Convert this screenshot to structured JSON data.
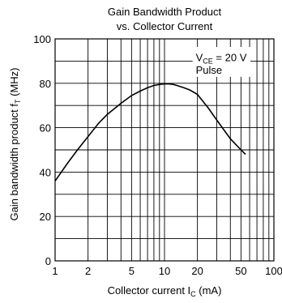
{
  "chart_data": {
    "type": "line",
    "title_line1": "Gain Bandwidth Product",
    "title_line2": "vs. Collector Current",
    "xlabel": {
      "main": "Collector current  I",
      "sub": "C",
      "unit": "  (mA)"
    },
    "ylabel": {
      "main": "Gain bandwidth product  f",
      "sub": "T",
      "unit": "  (MHz)"
    },
    "x_scale": "log",
    "xlim": [
      1,
      100
    ],
    "ylim": [
      0,
      100
    ],
    "x_ticks": [
      1,
      2,
      5,
      10,
      20,
      50,
      100
    ],
    "x_tick_labels": [
      "1",
      "2",
      "5",
      "10",
      "20",
      "50",
      "100"
    ],
    "y_ticks": [
      0,
      20,
      40,
      60,
      80,
      100
    ],
    "y_tick_labels": [
      "0",
      "20",
      "40",
      "60",
      "80",
      "100"
    ],
    "grid": true,
    "annotation": {
      "vce_main": "V",
      "vce_sub": "CE",
      "vce_value": " = 20 V",
      "pulse": "Pulse"
    },
    "series": [
      {
        "x": [
          1,
          1.3,
          1.6,
          2,
          2.5,
          3,
          4,
          5,
          6,
          7,
          8,
          9,
          10,
          11,
          12,
          13,
          15,
          17,
          20,
          25,
          30,
          40,
          50,
          55
        ],
        "y": [
          36,
          44,
          50,
          56,
          62,
          66,
          71,
          74.5,
          76.5,
          78,
          79,
          79.5,
          79.7,
          79.7,
          79.5,
          79,
          78,
          77,
          75,
          69,
          63.5,
          55,
          50,
          48
        ]
      }
    ]
  }
}
